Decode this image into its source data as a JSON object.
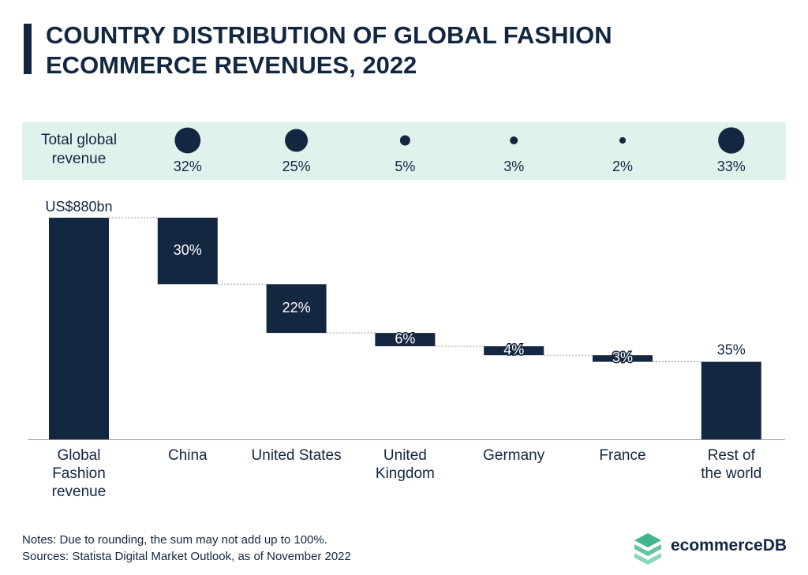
{
  "chart_data": {
    "type": "waterfall",
    "title": "COUNTRY DISTRIBUTION OF GLOBAL FASHION ECOMMERCE REVENUES, 2022",
    "total": {
      "category": "Global\nFashion\nrevenue",
      "value": 100,
      "label": "US$880bn"
    },
    "categories": [
      "China",
      "United States",
      "United\nKingdom",
      "Germany",
      "France",
      "Rest of\nthe world"
    ],
    "values": [
      30,
      22,
      6,
      4,
      3,
      35
    ],
    "value_labels": [
      "30%",
      "22%",
      "6%",
      "4%",
      "3%",
      "35%"
    ],
    "color": "#142740",
    "share": {
      "label": "Total global\nrevenue",
      "values": [
        32,
        25,
        5,
        3,
        2,
        33
      ],
      "value_labels": [
        "32%",
        "25%",
        "5%",
        "3%",
        "2%",
        "33%"
      ],
      "background": "#dff3ec"
    },
    "notes": "Notes: Due to rounding, the sum may not add up to 100%.",
    "source": "Sources: Statista Digital Market Outlook, as of November 2022",
    "brand": "ecommerceDB"
  }
}
